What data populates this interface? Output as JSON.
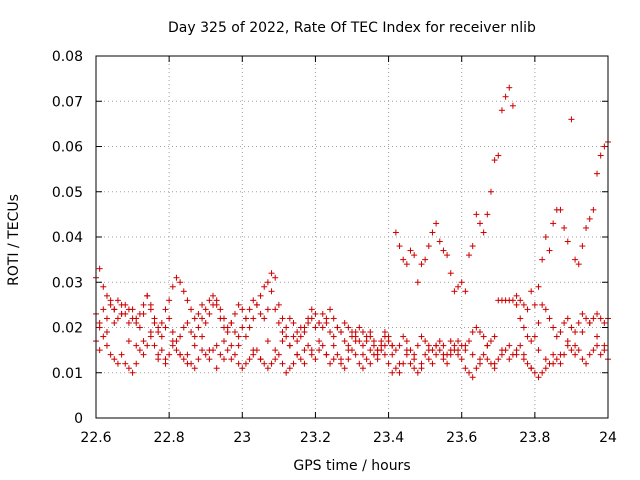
{
  "chart_data": {
    "type": "scatter",
    "title": "Day 325 of 2022, Rate Of TEC Index for receiver nlib",
    "xlabel": "GPS time / hours",
    "ylabel": "ROTI / TECUs",
    "xlim": [
      22.6,
      24.0
    ],
    "ylim": [
      0,
      0.08
    ],
    "xticks": [
      22.6,
      22.8,
      23.0,
      23.2,
      23.4,
      23.6,
      23.8,
      24.0
    ],
    "xtick_labels": [
      "22.6",
      "22.8",
      "23",
      "23.2",
      "23.4",
      "23.6",
      "23.8",
      "24"
    ],
    "yticks": [
      0,
      0.01,
      0.02,
      0.03,
      0.04,
      0.05,
      0.06,
      0.07,
      0.08
    ],
    "ytick_labels": [
      "0",
      "0.01",
      "0.02",
      "0.03",
      "0.04",
      "0.05",
      "0.06",
      "0.07",
      "0.08"
    ],
    "grid": true,
    "marker": "+",
    "marker_color": "#cc0000",
    "series": [
      {
        "x": [
          22.6,
          22.61,
          22.62,
          22.63,
          22.64,
          22.65,
          22.66,
          22.67,
          22.68,
          22.69,
          22.7,
          22.71,
          22.72,
          22.73,
          22.74,
          22.75,
          22.76,
          22.77,
          22.78,
          22.79,
          22.8,
          22.81,
          22.82,
          22.83,
          22.84,
          22.85,
          22.86,
          22.87,
          22.88,
          22.89,
          22.9,
          22.91,
          22.92,
          22.93,
          22.94,
          22.95,
          22.96,
          22.97,
          22.98,
          22.99,
          23.0,
          23.01,
          23.02,
          23.03,
          23.04,
          23.05,
          23.06,
          23.07,
          23.08,
          23.09,
          23.1,
          23.11,
          23.12,
          23.13,
          23.14,
          23.15,
          23.16,
          23.17,
          23.18,
          23.19,
          23.2,
          23.21,
          23.22,
          23.23,
          23.24,
          23.25,
          23.26,
          23.27,
          23.28,
          23.29,
          23.3,
          23.31,
          23.32,
          23.33,
          23.34,
          23.35,
          23.36,
          23.37,
          23.38,
          23.39,
          23.4,
          23.41,
          23.42,
          23.43,
          23.44,
          23.45,
          23.46,
          23.47,
          23.48,
          23.49,
          23.5,
          23.51,
          23.52,
          23.53,
          23.54,
          23.55,
          23.56,
          23.57,
          23.58,
          23.59,
          23.6,
          23.61,
          23.62,
          23.63,
          23.64,
          23.65,
          23.66,
          23.67,
          23.68,
          23.69,
          23.7,
          23.71,
          23.72,
          23.73,
          23.74,
          23.75,
          23.76,
          23.77,
          23.78,
          23.79,
          23.8,
          23.81,
          23.82,
          23.83,
          23.84,
          23.85,
          23.86,
          23.87,
          23.88,
          23.89,
          23.9,
          23.91,
          23.92,
          23.93,
          23.94,
          23.95,
          23.96,
          23.97,
          23.98,
          23.99,
          24.0
        ],
        "y": [
          0.023,
          0.021,
          0.024,
          0.022,
          0.026,
          0.024,
          0.022,
          0.025,
          0.023,
          0.021,
          0.024,
          0.022,
          0.02,
          0.023,
          0.027,
          0.025,
          0.022,
          0.019,
          0.021,
          0.024,
          0.026,
          0.029,
          0.031,
          0.03,
          0.028,
          0.026,
          0.024,
          0.022,
          0.023,
          0.025,
          0.024,
          0.026,
          0.027,
          0.025,
          0.022,
          0.02,
          0.019,
          0.021,
          0.023,
          0.025,
          0.024,
          0.022,
          0.02,
          0.022,
          0.025,
          0.027,
          0.029,
          0.03,
          0.028,
          0.024,
          0.021,
          0.019,
          0.02,
          0.022,
          0.021,
          0.019,
          0.018,
          0.02,
          0.022,
          0.024,
          0.023,
          0.021,
          0.02,
          0.022,
          0.024,
          0.022,
          0.02,
          0.019,
          0.021,
          0.02,
          0.019,
          0.018,
          0.02,
          0.019,
          0.017,
          0.018,
          0.016,
          0.015,
          0.017,
          0.019,
          0.018,
          0.016,
          0.015,
          0.016,
          0.018,
          0.017,
          0.015,
          0.014,
          0.016,
          0.018,
          0.017,
          0.016,
          0.015,
          0.016,
          0.017,
          0.016,
          0.014,
          0.015,
          0.016,
          0.017,
          0.016,
          0.015,
          0.017,
          0.019,
          0.02,
          0.019,
          0.018,
          0.016,
          0.017,
          0.018,
          0.026,
          0.026,
          0.026,
          0.026,
          0.026,
          0.025,
          0.022,
          0.02,
          0.018,
          0.017,
          0.018,
          0.021,
          0.025,
          0.024,
          0.022,
          0.02,
          0.018,
          0.019,
          0.021,
          0.022,
          0.02,
          0.019,
          0.021,
          0.023,
          0.022,
          0.021,
          0.022,
          0.023,
          0.022,
          0.021,
          0.022
        ]
      },
      {
        "x": [
          22.6,
          22.61,
          22.62,
          22.63,
          22.64,
          22.65,
          22.66,
          22.67,
          22.68,
          22.69,
          22.7,
          22.71,
          22.72,
          22.73,
          22.74,
          22.75,
          22.76,
          22.77,
          22.78,
          22.79,
          22.8,
          22.81,
          22.82,
          22.83,
          22.84,
          22.85,
          22.86,
          22.87,
          22.88,
          22.89,
          22.9,
          22.91,
          22.92,
          22.93,
          22.94,
          22.95,
          22.96,
          22.97,
          22.98,
          22.99,
          23.0,
          23.01,
          23.02,
          23.03,
          23.04,
          23.05,
          23.06,
          23.07,
          23.08,
          23.09,
          23.1,
          23.11,
          23.12,
          23.13,
          23.14,
          23.15,
          23.16,
          23.17,
          23.18,
          23.19,
          23.2,
          23.21,
          23.22,
          23.23,
          23.24,
          23.25,
          23.26,
          23.27,
          23.28,
          23.29,
          23.3,
          23.31,
          23.32,
          23.33,
          23.34,
          23.35,
          23.36,
          23.37,
          23.38,
          23.39,
          23.4,
          23.41,
          23.42,
          23.43,
          23.44,
          23.45,
          23.46,
          23.47,
          23.48,
          23.49,
          23.5,
          23.51,
          23.52,
          23.53,
          23.54,
          23.55,
          23.56,
          23.57,
          23.58,
          23.59,
          23.6,
          23.61,
          23.62,
          23.63,
          23.64,
          23.65,
          23.66,
          23.67,
          23.68,
          23.69,
          23.7,
          23.71,
          23.72,
          23.73,
          23.74,
          23.75,
          23.76,
          23.77,
          23.78,
          23.79,
          23.8,
          23.81,
          23.82,
          23.83,
          23.84,
          23.85,
          23.86,
          23.87,
          23.88,
          23.89,
          23.9,
          23.91,
          23.92,
          23.93,
          23.94,
          23.95,
          23.96,
          23.97,
          23.98,
          23.99,
          24.0
        ],
        "y": [
          0.017,
          0.015,
          0.018,
          0.016,
          0.014,
          0.013,
          0.012,
          0.014,
          0.012,
          0.011,
          0.01,
          0.012,
          0.015,
          0.017,
          0.016,
          0.018,
          0.016,
          0.014,
          0.015,
          0.013,
          0.014,
          0.016,
          0.015,
          0.014,
          0.013,
          0.014,
          0.012,
          0.011,
          0.013,
          0.015,
          0.014,
          0.013,
          0.015,
          0.016,
          0.014,
          0.013,
          0.015,
          0.016,
          0.014,
          0.012,
          0.011,
          0.012,
          0.013,
          0.014,
          0.015,
          0.013,
          0.012,
          0.011,
          0.012,
          0.013,
          0.014,
          0.012,
          0.01,
          0.011,
          0.012,
          0.014,
          0.013,
          0.015,
          0.016,
          0.014,
          0.013,
          0.015,
          0.016,
          0.014,
          0.012,
          0.013,
          0.014,
          0.012,
          0.011,
          0.013,
          0.015,
          0.014,
          0.012,
          0.011,
          0.013,
          0.015,
          0.014,
          0.013,
          0.015,
          0.014,
          0.012,
          0.01,
          0.011,
          0.01,
          0.012,
          0.014,
          0.012,
          0.011,
          0.01,
          0.012,
          0.014,
          0.013,
          0.012,
          0.014,
          0.015,
          0.013,
          0.012,
          0.014,
          0.015,
          0.014,
          0.013,
          0.011,
          0.01,
          0.009,
          0.011,
          0.012,
          0.014,
          0.013,
          0.012,
          0.011,
          0.013,
          0.014,
          0.015,
          0.013,
          0.014,
          0.015,
          0.016,
          0.014,
          0.012,
          0.011,
          0.01,
          0.009,
          0.01,
          0.011,
          0.012,
          0.014,
          0.013,
          0.012,
          0.014,
          0.016,
          0.015,
          0.014,
          0.015,
          0.013,
          0.012,
          0.014,
          0.015,
          0.016,
          0.014,
          0.015,
          0.013
        ]
      },
      {
        "x": [
          22.6,
          22.61,
          22.62,
          22.63,
          22.64,
          22.65,
          22.66,
          22.67,
          22.68,
          22.69,
          22.7,
          22.71,
          22.72,
          22.73,
          22.74,
          22.75,
          22.76,
          22.77,
          22.78,
          22.79,
          22.8,
          22.81,
          22.82,
          22.83,
          22.84,
          22.85,
          22.86,
          22.87,
          22.88,
          22.89,
          22.9,
          22.91,
          22.92,
          22.93,
          22.94,
          22.95,
          22.96,
          22.97,
          22.98,
          22.99,
          23.0,
          23.01,
          23.02,
          23.03,
          23.04,
          23.05,
          23.06,
          23.07,
          23.08,
          23.09,
          23.1,
          23.11,
          23.12,
          23.13,
          23.14,
          23.15,
          23.16,
          23.17,
          23.18,
          23.19,
          23.2,
          23.21,
          23.22,
          23.23,
          23.24,
          23.25,
          23.26,
          23.27,
          23.28,
          23.29,
          23.3,
          23.31,
          23.32,
          23.33,
          23.34,
          23.35,
          23.36,
          23.37,
          23.38,
          23.39,
          23.4,
          23.41,
          23.42,
          23.43,
          23.44,
          23.45,
          23.46,
          23.47,
          23.48,
          23.49,
          23.5,
          23.51,
          23.52,
          23.53,
          23.54,
          23.55,
          23.56,
          23.57,
          23.58,
          23.59,
          23.6,
          23.61,
          23.62,
          23.63,
          23.64,
          23.65,
          23.66,
          23.67,
          23.68,
          23.69,
          23.7,
          23.71,
          23.72,
          23.73,
          23.74,
          23.75,
          23.76,
          23.77,
          23.78,
          23.79,
          23.8,
          23.81,
          23.82,
          23.83,
          23.84,
          23.85,
          23.86,
          23.87,
          23.88,
          23.89,
          23.9,
          23.91,
          23.92,
          23.93,
          23.94,
          23.95,
          23.96,
          23.97,
          23.98,
          23.99,
          24.0
        ],
        "y": [
          0.031,
          0.033,
          0.029,
          0.027,
          0.025,
          0.024,
          0.026,
          0.023,
          0.025,
          0.024,
          0.022,
          0.021,
          0.023,
          0.025,
          0.027,
          0.024,
          0.021,
          0.02,
          0.018,
          0.02,
          0.022,
          0.019,
          0.017,
          0.018,
          0.02,
          0.021,
          0.019,
          0.018,
          0.02,
          0.022,
          0.021,
          0.023,
          0.025,
          0.026,
          0.024,
          0.022,
          0.02,
          0.021,
          0.019,
          0.018,
          0.02,
          0.022,
          0.024,
          0.026,
          0.025,
          0.023,
          0.022,
          0.024,
          0.032,
          0.031,
          0.025,
          0.022,
          0.018,
          0.016,
          0.018,
          0.017,
          0.02,
          0.019,
          0.021,
          0.022,
          0.02,
          0.021,
          0.023,
          0.021,
          0.019,
          0.018,
          0.02,
          0.019,
          0.017,
          0.016,
          0.018,
          0.019,
          0.017,
          0.016,
          0.018,
          0.019,
          0.017,
          0.015,
          0.016,
          0.018,
          0.017,
          0.016,
          0.041,
          0.038,
          0.035,
          0.034,
          0.037,
          0.036,
          0.03,
          0.034,
          0.035,
          0.038,
          0.041,
          0.043,
          0.039,
          0.037,
          0.036,
          0.032,
          0.028,
          0.029,
          0.03,
          0.028,
          0.036,
          0.038,
          0.045,
          0.043,
          0.041,
          0.045,
          0.05,
          0.057,
          0.058,
          0.068,
          0.071,
          0.073,
          0.069,
          0.027,
          0.026,
          0.025,
          0.024,
          0.028,
          0.025,
          0.029,
          0.035,
          0.04,
          0.037,
          0.043,
          0.046,
          0.046,
          0.042,
          0.039,
          0.066,
          0.035,
          0.034,
          0.038,
          0.042,
          0.044,
          0.046,
          0.054,
          0.058,
          0.06,
          0.061
        ]
      },
      {
        "x": [
          22.61,
          22.63,
          22.65,
          22.67,
          22.69,
          22.71,
          22.73,
          22.75,
          22.77,
          22.79,
          22.81,
          22.83,
          22.85,
          22.87,
          22.89,
          22.91,
          22.93,
          22.95,
          22.97,
          22.99,
          23.01,
          23.03,
          23.05,
          23.07,
          23.09,
          23.11,
          23.13,
          23.15,
          23.17,
          23.19,
          23.21,
          23.23,
          23.25,
          23.27,
          23.29,
          23.31,
          23.33,
          23.35,
          23.37,
          23.39,
          23.41,
          23.43,
          23.45,
          23.47,
          23.49,
          23.51,
          23.53,
          23.55,
          23.57,
          23.59,
          23.61,
          23.63,
          23.65,
          23.67,
          23.69,
          23.71,
          23.73,
          23.75,
          23.77,
          23.79,
          23.81,
          23.83,
          23.85,
          23.87,
          23.89,
          23.91,
          23.93,
          23.95,
          23.97,
          23.99
        ],
        "y": [
          0.02,
          0.019,
          0.021,
          0.023,
          0.017,
          0.016,
          0.014,
          0.019,
          0.013,
          0.012,
          0.017,
          0.014,
          0.012,
          0.016,
          0.018,
          0.015,
          0.011,
          0.017,
          0.013,
          0.016,
          0.018,
          0.015,
          0.013,
          0.017,
          0.015,
          0.017,
          0.016,
          0.014,
          0.012,
          0.015,
          0.017,
          0.014,
          0.016,
          0.013,
          0.015,
          0.017,
          0.014,
          0.012,
          0.014,
          0.016,
          0.014,
          0.012,
          0.015,
          0.013,
          0.011,
          0.015,
          0.016,
          0.014,
          0.017,
          0.015,
          0.016,
          0.014,
          0.013,
          0.016,
          0.012,
          0.015,
          0.016,
          0.014,
          0.013,
          0.011,
          0.015,
          0.013,
          0.012,
          0.014,
          0.017,
          0.016,
          0.019,
          0.021,
          0.018,
          0.016
        ]
      }
    ]
  }
}
